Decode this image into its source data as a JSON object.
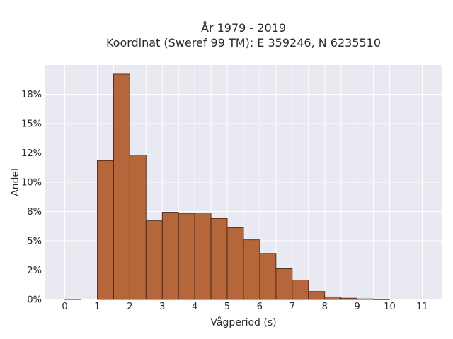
{
  "chart_data": {
    "type": "bar",
    "title": "År 1979 - 2019",
    "subtitle": "Koordinat (Sweref 99 TM): E 359246, N 6235510",
    "xlabel": "Vågperiod (s)",
    "ylabel": "Andel",
    "bin_width": 0.5,
    "bins": [
      {
        "x": 0.0,
        "value": 0.0003
      },
      {
        "x": 1.0,
        "value": 0.1185
      },
      {
        "x": 1.5,
        "value": 0.1922
      },
      {
        "x": 2.0,
        "value": 0.1231
      },
      {
        "x": 2.5,
        "value": 0.0671
      },
      {
        "x": 3.0,
        "value": 0.0744
      },
      {
        "x": 3.5,
        "value": 0.0731
      },
      {
        "x": 4.0,
        "value": 0.0738
      },
      {
        "x": 4.5,
        "value": 0.0691
      },
      {
        "x": 5.0,
        "value": 0.0613
      },
      {
        "x": 5.5,
        "value": 0.0508
      },
      {
        "x": 6.0,
        "value": 0.0393
      },
      {
        "x": 6.5,
        "value": 0.0263
      },
      {
        "x": 7.0,
        "value": 0.0166
      },
      {
        "x": 7.5,
        "value": 0.0068
      },
      {
        "x": 8.0,
        "value": 0.0022
      },
      {
        "x": 8.5,
        "value": 0.0011
      },
      {
        "x": 9.0,
        "value": 0.0005
      },
      {
        "x": 9.5,
        "value": 0.0002
      }
    ],
    "xticks": [
      "0",
      "1",
      "2",
      "3",
      "4",
      "5",
      "6",
      "7",
      "8",
      "9",
      "10",
      "11"
    ],
    "yticks": [
      "0%",
      "2%",
      "5%",
      "8%",
      "10%",
      "12%",
      "15%",
      "18%"
    ],
    "ytick_values": [
      0,
      0.025,
      0.05,
      0.075,
      0.1,
      0.125,
      0.15,
      0.175
    ],
    "xlim": [
      -0.6,
      11.6
    ],
    "ylim": [
      0,
      0.2
    ],
    "bar_color": "#b5663a",
    "plot_background": "#e8e9f1",
    "grid": true
  }
}
